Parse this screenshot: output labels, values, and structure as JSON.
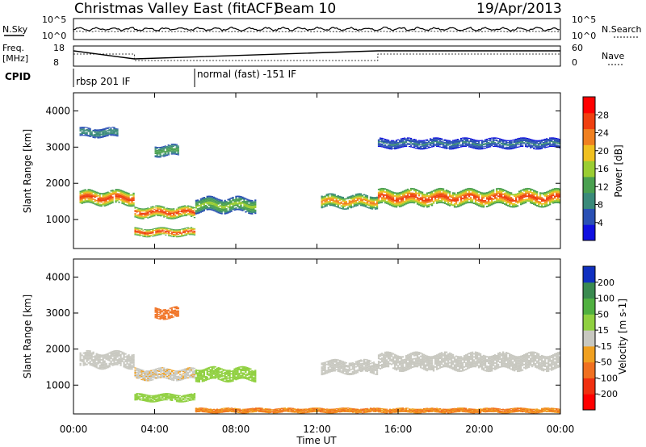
{
  "header": {
    "station": "Christmas Valley East (fitACF)",
    "beam": "Beam 10",
    "date": "19/Apr/2013"
  },
  "noise_panel": {
    "left_label": "N.Sky",
    "right_label": "N.Search",
    "left_ticks": [
      "10^5",
      "10^0"
    ],
    "right_ticks": [
      "10^5",
      "10^0"
    ]
  },
  "freq_panel": {
    "left_label_1": "Freq.",
    "left_label_2": "[MHz]",
    "right_label": "Nave",
    "left_ticks": [
      "18",
      "8"
    ],
    "right_ticks": [
      "60",
      "0"
    ]
  },
  "cpid": {
    "label": "CPID",
    "segments": [
      {
        "start": 0,
        "end": 6,
        "text": "rbsp 201 IF"
      },
      {
        "start": 6,
        "end": 24,
        "text": "normal (fast) -151 IF"
      }
    ]
  },
  "x_axis": {
    "label": "Time UT",
    "ticks": [
      "00:00",
      "04:00",
      "08:00",
      "12:00",
      "16:00",
      "20:00",
      "00:00"
    ],
    "range_hours": [
      0,
      24
    ]
  },
  "colors": {
    "power_scale": [
      "#1010e0",
      "#2a50b4",
      "#3a8a7a",
      "#4aa050",
      "#9acd32",
      "#f0c020",
      "#f08020",
      "#f04010",
      "#ff0000"
    ],
    "velocity_scale": [
      "#1030c0",
      "#3a8a50",
      "#50b040",
      "#90d040",
      "#c8c8c0",
      "#f0a020",
      "#f07020",
      "#f03010",
      "#ff0000"
    ]
  },
  "chart_data": [
    {
      "type": "heatmap",
      "name": "power",
      "xlabel": "Time UT",
      "ylabel": "Slant Range [km]",
      "ylim": [
        200,
        4500
      ],
      "yticks": [
        "1000",
        "2000",
        "3000",
        "4000"
      ],
      "colorbar": {
        "label": "Power [dB]",
        "ticks": [
          "4",
          "8",
          "12",
          "16",
          "20",
          "24",
          "28"
        ],
        "range": [
          0,
          30
        ]
      },
      "features": [
        {
          "t_start": 0.3,
          "t_end": 3.0,
          "range_km": 1600,
          "width_km": 380,
          "peak": 28
        },
        {
          "t_start": 0.3,
          "t_end": 2.2,
          "range_km": 3400,
          "width_km": 250,
          "peak": 10
        },
        {
          "t_start": 3.0,
          "t_end": 6.0,
          "range_km": 650,
          "width_km": 220,
          "peak": 26
        },
        {
          "t_start": 3.0,
          "t_end": 6.0,
          "range_km": 1200,
          "width_km": 300,
          "peak": 27
        },
        {
          "t_start": 4.0,
          "t_end": 5.2,
          "range_km": 2900,
          "width_km": 300,
          "peak": 14
        },
        {
          "t_start": 6.0,
          "t_end": 9.0,
          "range_km": 1400,
          "width_km": 400,
          "peak": 15
        },
        {
          "t_start": 12.2,
          "t_end": 15.0,
          "range_km": 1500,
          "width_km": 350,
          "peak": 22
        },
        {
          "t_start": 15.0,
          "t_end": 24.0,
          "range_km": 1600,
          "width_km": 420,
          "peak": 26
        },
        {
          "t_start": 15.0,
          "t_end": 24.0,
          "range_km": 3100,
          "width_km": 260,
          "peak": 8
        }
      ]
    },
    {
      "type": "heatmap",
      "name": "velocity",
      "xlabel": "Time UT",
      "ylabel": "Slant Range [km]",
      "ylim": [
        200,
        4500
      ],
      "yticks": [
        "1000",
        "2000",
        "3000",
        "4000"
      ],
      "colorbar": {
        "label": "Velocity [m s-1]",
        "ticks": [
          "200",
          "100",
          "50",
          "15",
          "-15",
          "-50",
          "-100",
          "-200"
        ],
        "range": [
          -250,
          250
        ]
      },
      "features": [
        {
          "t_start": 0.3,
          "t_end": 3.0,
          "range_km": 1700,
          "width_km": 420,
          "velocity": 0
        },
        {
          "t_start": 3.0,
          "t_end": 6.0,
          "range_km": 650,
          "width_km": 200,
          "velocity": 30
        },
        {
          "t_start": 3.0,
          "t_end": 6.0,
          "range_km": 1300,
          "width_km": 300,
          "velocity": -10
        },
        {
          "t_start": 4.0,
          "t_end": 5.2,
          "range_km": 3000,
          "width_km": 300,
          "velocity": -60
        },
        {
          "t_start": 6.0,
          "t_end": 9.0,
          "range_km": 1300,
          "width_km": 350,
          "velocity": 40
        },
        {
          "t_start": 12.2,
          "t_end": 15.0,
          "range_km": 1500,
          "width_km": 350,
          "velocity": 5
        },
        {
          "t_start": 15.0,
          "t_end": 24.0,
          "range_km": 1650,
          "width_km": 440,
          "velocity": 0
        },
        {
          "t_start": 6.0,
          "t_end": 24.0,
          "range_km": 300,
          "width_km": 120,
          "velocity": -50
        }
      ]
    }
  ]
}
